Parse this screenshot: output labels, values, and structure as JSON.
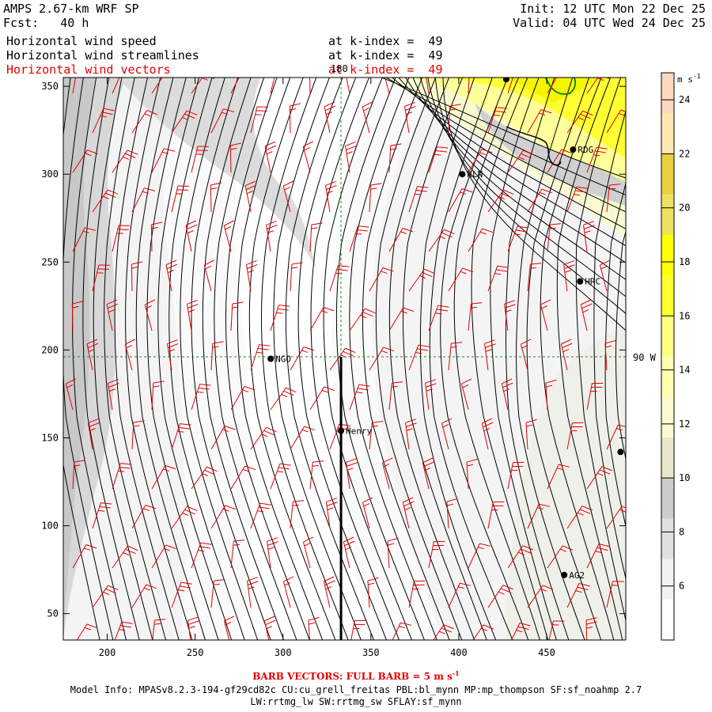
{
  "header": {
    "model": "AMPS 2.67-km WRF SP",
    "fcst_label": "Fcst:",
    "fcst_value": "40 h",
    "init": "Init: 12 UTC Mon 22 Dec 25",
    "valid": "Valid: 04 UTC Wed 24 Dec 25"
  },
  "fields": [
    {
      "name": "Horizontal wind speed",
      "level": "at k-index =  49",
      "color": "#000000"
    },
    {
      "name": "Horizontal wind streamlines",
      "level": "at k-index =  49",
      "color": "#000000"
    },
    {
      "name": "Horizontal wind vectors",
      "level": "at k-index =  49",
      "color": "#e00000"
    }
  ],
  "map": {
    "x_ticks": [
      200,
      250,
      300,
      350,
      400,
      450
    ],
    "y_ticks": [
      50,
      100,
      150,
      200,
      250,
      300,
      350
    ],
    "x_range": [
      175,
      495
    ],
    "y_range": [
      35,
      355
    ],
    "top_marker_label": "180",
    "right_marker_label": "90 W",
    "stations": [
      {
        "name": "NGO",
        "x": 293,
        "y": 195
      },
      {
        "name": "Henry",
        "x": 333,
        "y": 154
      },
      {
        "name": "KLN",
        "x": 402,
        "y": 300
      },
      {
        "name": "RDG",
        "x": 465,
        "y": 314
      },
      {
        "name": "HRC",
        "x": 469,
        "y": 239
      },
      {
        "name": "AG2",
        "x": 460,
        "y": 72
      },
      {
        "name": "",
        "x": 492,
        "y": 142
      },
      {
        "name": "",
        "x": 427,
        "y": 354
      }
    ],
    "cross_section_x": 333
  },
  "colorbar": {
    "unit": "m s",
    "unit_exp": "-1",
    "labels": [
      "6",
      "8",
      "10",
      "12",
      "14",
      "16",
      "18",
      "20",
      "22",
      "24"
    ],
    "colors": [
      "#ffffff",
      "#f2f2f2",
      "#e0e0e0",
      "#cccccc",
      "#e8e8cc",
      "#fafad0",
      "#ffffb0",
      "#ffff80",
      "#ffff30",
      "#ffff00",
      "#f0e060",
      "#e8d040",
      "#ffe8b0",
      "#ffd8c0"
    ]
  },
  "footer": {
    "barb_note": "BARB VECTORS:  FULL BARB = 5 m s",
    "barb_note_exp": "-1",
    "model_info": "Model Info: MPASv8.2.3-194-gf29cd82c CU:cu_grell_freitas PBL:bl_mynn MP:mp_thompson SF:sf_noahmp 2.7",
    "model_info2": "LW:rrtmg_lw SW:rrtmg_sw SFLAY:sf_mynn"
  }
}
